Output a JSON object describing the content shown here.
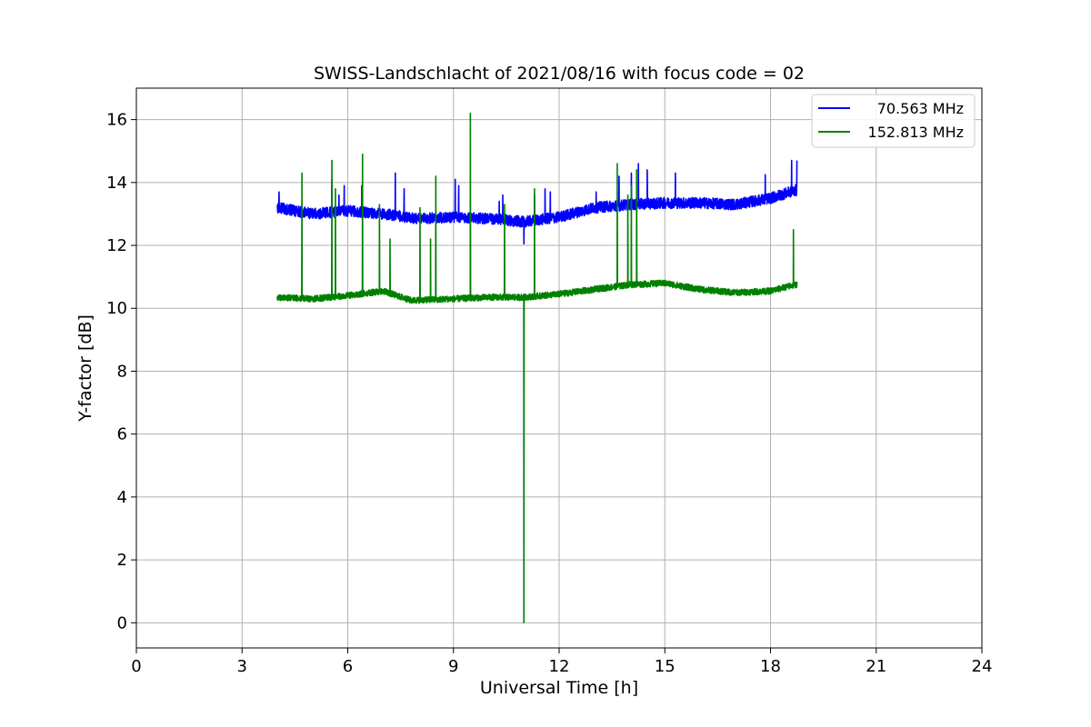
{
  "chart_data": {
    "type": "line",
    "title": "SWISS-Landschlacht of 2021/08/16 with focus code = 02",
    "xlabel": "Universal Time [h]",
    "ylabel": "Y-factor [dB]",
    "xlim": [
      0,
      24
    ],
    "ylim": [
      -0.8,
      17.0
    ],
    "xticks": [
      0,
      3,
      6,
      9,
      12,
      15,
      18,
      21,
      24
    ],
    "yticks": [
      0,
      2,
      4,
      6,
      8,
      10,
      12,
      14,
      16
    ],
    "xtick_labels": [
      "0",
      "3",
      "6",
      "9",
      "12",
      "15",
      "18",
      "21",
      "24"
    ],
    "ytick_labels": [
      "0",
      "2",
      "4",
      "6",
      "8",
      "10",
      "12",
      "14",
      "16"
    ],
    "grid": true,
    "legend_position": "top-right",
    "series": [
      {
        "name": "70.563 MHz",
        "color": "#0000ff",
        "x_range": [
          4.0,
          18.75
        ],
        "baseline": [
          [
            4.0,
            13.2
          ],
          [
            5.0,
            13.0
          ],
          [
            6.0,
            13.1
          ],
          [
            7.0,
            13.0
          ],
          [
            8.0,
            12.85
          ],
          [
            9.0,
            12.9
          ],
          [
            10.0,
            12.85
          ],
          [
            11.0,
            12.75
          ],
          [
            12.0,
            12.9
          ],
          [
            13.0,
            13.2
          ],
          [
            14.0,
            13.3
          ],
          [
            15.0,
            13.35
          ],
          [
            16.0,
            13.35
          ],
          [
            17.0,
            13.3
          ],
          [
            18.0,
            13.5
          ],
          [
            18.7,
            13.75
          ]
        ],
        "noise": 0.35,
        "spikes": [
          [
            4.05,
            13.7
          ],
          [
            5.55,
            14.1
          ],
          [
            5.75,
            13.6
          ],
          [
            5.9,
            13.9
          ],
          [
            6.4,
            13.9
          ],
          [
            7.35,
            14.3
          ],
          [
            7.6,
            13.8
          ],
          [
            9.05,
            14.1
          ],
          [
            9.15,
            13.9
          ],
          [
            10.3,
            13.4
          ],
          [
            10.4,
            13.6
          ],
          [
            11.0,
            12.05
          ],
          [
            11.3,
            13.6
          ],
          [
            11.6,
            13.8
          ],
          [
            11.75,
            13.7
          ],
          [
            13.05,
            13.7
          ],
          [
            13.7,
            14.2
          ],
          [
            14.05,
            14.3
          ],
          [
            14.25,
            14.6
          ],
          [
            14.5,
            14.4
          ],
          [
            15.3,
            14.3
          ],
          [
            17.85,
            14.25
          ],
          [
            18.6,
            14.7
          ],
          [
            18.75,
            14.7
          ]
        ]
      },
      {
        "name": "152.813 MHz",
        "color": "#008000",
        "x_range": [
          4.0,
          18.75
        ],
        "baseline": [
          [
            4.0,
            10.35
          ],
          [
            5.0,
            10.3
          ],
          [
            6.0,
            10.4
          ],
          [
            7.0,
            10.55
          ],
          [
            7.8,
            10.25
          ],
          [
            9.0,
            10.3
          ],
          [
            10.0,
            10.35
          ],
          [
            11.0,
            10.35
          ],
          [
            12.0,
            10.45
          ],
          [
            13.0,
            10.6
          ],
          [
            14.0,
            10.75
          ],
          [
            15.0,
            10.8
          ],
          [
            16.0,
            10.6
          ],
          [
            17.0,
            10.5
          ],
          [
            18.0,
            10.55
          ],
          [
            18.7,
            10.75
          ]
        ],
        "noise": 0.2,
        "spikes": [
          [
            4.7,
            14.3
          ],
          [
            5.55,
            14.7
          ],
          [
            5.65,
            13.8
          ],
          [
            6.42,
            14.9
          ],
          [
            6.9,
            13.3
          ],
          [
            7.2,
            12.2
          ],
          [
            8.05,
            13.2
          ],
          [
            8.35,
            12.2
          ],
          [
            8.5,
            14.2
          ],
          [
            9.48,
            16.2
          ],
          [
            10.45,
            13.3
          ],
          [
            11.3,
            13.8
          ],
          [
            13.65,
            14.6
          ],
          [
            13.95,
            13.6
          ],
          [
            14.05,
            13.9
          ],
          [
            14.2,
            14.4
          ],
          [
            18.65,
            12.5
          ]
        ],
        "dropout": {
          "x": 11.0,
          "y": 0.0
        }
      }
    ]
  }
}
